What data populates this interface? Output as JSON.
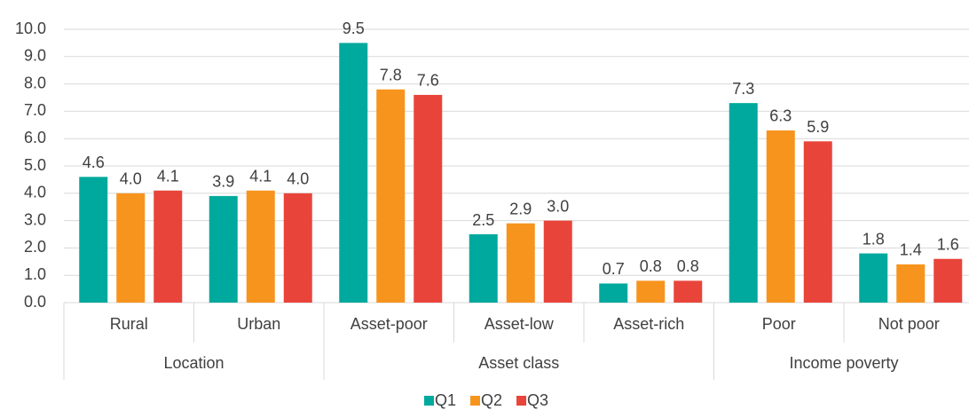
{
  "chart_data": {
    "type": "bar",
    "categories": [
      "Rural",
      "Urban",
      "Asset-poor",
      "Asset-low",
      "Asset-rich",
      "Poor",
      "Not poor"
    ],
    "group_labels": [
      "Location",
      null,
      "Asset class",
      null,
      null,
      "Income poverty",
      null
    ],
    "series": [
      {
        "name": "Q1",
        "color": "#00a99d",
        "values": [
          4.6,
          3.9,
          9.5,
          2.5,
          0.7,
          7.3,
          1.8
        ],
        "value_labels": [
          "4.6",
          "3.9",
          "9.5",
          "2.5",
          "0.7",
          "7.3",
          "1.8"
        ]
      },
      {
        "name": "Q2",
        "color": "#f7941d",
        "values": [
          4.0,
          4.1,
          7.8,
          2.9,
          0.8,
          6.3,
          1.4
        ],
        "value_labels": [
          "4.0",
          "4.1",
          "7.8",
          "2.9",
          "0.8",
          "6.3",
          "1.4"
        ]
      },
      {
        "name": "Q3",
        "color": "#e8443a",
        "values": [
          4.1,
          4.0,
          7.6,
          3.0,
          0.8,
          5.9,
          1.6
        ],
        "value_labels": [
          "4.1",
          "4.0",
          "7.6",
          "3.0",
          "0.8",
          "5.9",
          "1.6"
        ]
      }
    ],
    "ylim": [
      0,
      10
    ],
    "yticks": [
      {
        "value": 0,
        "label": "0.0"
      },
      {
        "value": 1,
        "label": "1.0"
      },
      {
        "value": 2,
        "label": "2.0"
      },
      {
        "value": 3,
        "label": "3.0"
      },
      {
        "value": 4,
        "label": "4.0"
      },
      {
        "value": 5,
        "label": "5.0"
      },
      {
        "value": 6,
        "label": "6.0"
      },
      {
        "value": 7,
        "label": "7.0"
      },
      {
        "value": 8,
        "label": "8.0"
      },
      {
        "value": 9,
        "label": "9.0"
      },
      {
        "value": 10,
        "label": "10.0"
      }
    ],
    "grid": true,
    "legend": "bottom"
  }
}
